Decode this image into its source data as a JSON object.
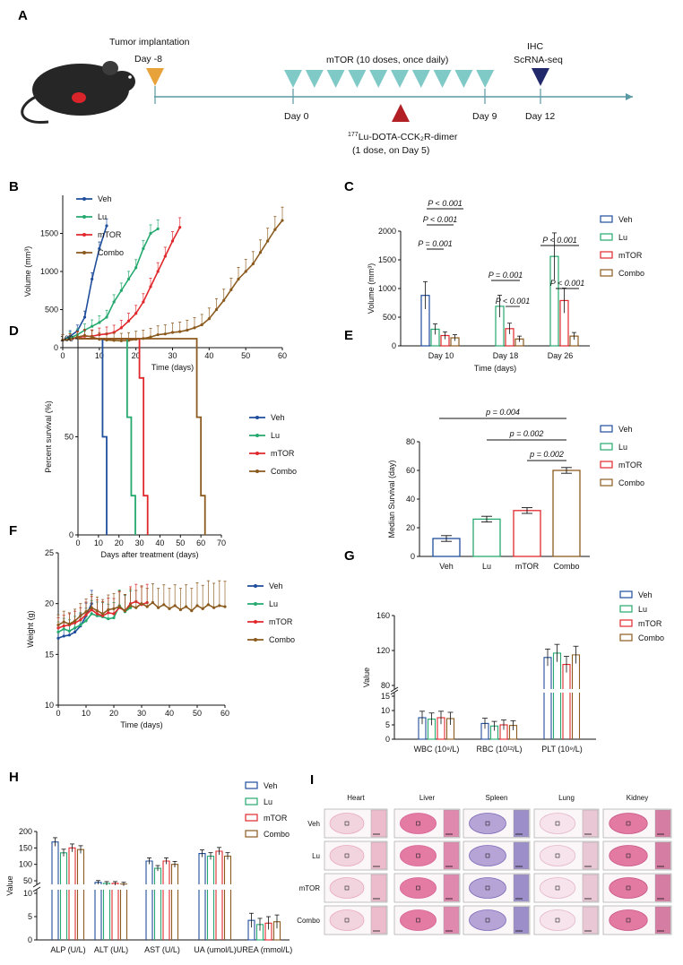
{
  "colors": {
    "veh": "#1f4e9c",
    "lu": "#25a96e",
    "mtor": "#e0282d",
    "combo": "#8b5a1e",
    "teal": "#7fc9c7",
    "red": "#b21f24",
    "navy": "#22296b",
    "orange": "#e8a23a"
  },
  "panelA": {
    "label": "A",
    "tumor_implantation": "Tumor implantation",
    "day_m8": "Day -8",
    "mtor_doses": "mTOR (10 doses, once daily)",
    "day0": "Day 0",
    "day9": "Day 9",
    "day12": "Day 12",
    "ihc": "IHC",
    "scrna": "ScRNA-seq",
    "lu_line1_sup": "177",
    "lu_line1": "Lu-DOTA-CCK₂R-dimer",
    "lu_line2": "(1 dose, on Day 5)"
  },
  "legend": [
    "Veh",
    "Lu",
    "mTOR",
    "Combo"
  ],
  "chart_data": [
    {
      "id": "B",
      "type": "line",
      "xlabel": "Time (days)",
      "ylabel": "Volume (mm³)",
      "xlim": [
        0,
        60
      ],
      "ylim": [
        0,
        2000
      ],
      "xticks": [
        0,
        10,
        20,
        30,
        40,
        50,
        60
      ],
      "yticks": [
        0,
        500,
        1000,
        1500
      ],
      "series": [
        {
          "name": "Veh",
          "x": [
            0,
            2,
            4,
            6,
            8,
            10,
            12
          ],
          "y": [
            100,
            150,
            220,
            400,
            900,
            1300,
            1600
          ]
        },
        {
          "name": "Lu",
          "x": [
            0,
            2,
            4,
            6,
            8,
            10,
            12,
            14,
            16,
            18,
            20,
            22,
            24,
            26
          ],
          "y": [
            100,
            130,
            170,
            230,
            280,
            330,
            400,
            600,
            750,
            900,
            1050,
            1300,
            1500,
            1560
          ]
        },
        {
          "name": "mTOR",
          "x": [
            0,
            2,
            4,
            6,
            8,
            10,
            12,
            14,
            16,
            18,
            20,
            22,
            24,
            26,
            28,
            30,
            32
          ],
          "y": [
            100,
            110,
            130,
            150,
            150,
            170,
            180,
            200,
            260,
            350,
            450,
            600,
            800,
            1000,
            1200,
            1400,
            1580
          ]
        },
        {
          "name": "Combo",
          "x": [
            0,
            2,
            4,
            6,
            8,
            10,
            12,
            14,
            16,
            18,
            20,
            22,
            24,
            26,
            28,
            30,
            32,
            34,
            36,
            38,
            40,
            42,
            44,
            46,
            48,
            50,
            52,
            54,
            56,
            58,
            60
          ],
          "y": [
            100,
            110,
            140,
            160,
            140,
            110,
            100,
            95,
            90,
            95,
            110,
            120,
            140,
            170,
            180,
            200,
            210,
            230,
            260,
            300,
            380,
            500,
            620,
            760,
            900,
            1000,
            1100,
            1250,
            1400,
            1550,
            1670
          ]
        }
      ]
    },
    {
      "id": "C",
      "type": "bar",
      "categories": [
        "Day 10",
        "Day 18",
        "Day 26"
      ],
      "xlabel": "Time (days)",
      "ylabel": "Volume (mm³)",
      "ylim": [
        0,
        2000
      ],
      "yticks": [
        0,
        500,
        1000,
        1500,
        2000
      ],
      "series": [
        {
          "name": "Veh",
          "values": [
            880,
            null,
            null
          ]
        },
        {
          "name": "Lu",
          "values": [
            290,
            690,
            1560
          ]
        },
        {
          "name": "mTOR",
          "values": [
            180,
            300,
            790
          ]
        },
        {
          "name": "Combo",
          "values": [
            140,
            120,
            170
          ]
        }
      ],
      "annotations": [
        "P < 0.001",
        "P < 0.001",
        "P = 0.001",
        "P = 0.001",
        "P < 0.001",
        "P < 0.001",
        "P < 0.001"
      ]
    },
    {
      "id": "D",
      "type": "line",
      "xlabel": "Days after treatment  (days)",
      "ylabel": "Percent survival (%)",
      "xlim": [
        0,
        70
      ],
      "ylim": [
        0,
        100
      ],
      "xticks": [
        0,
        10,
        20,
        30,
        40,
        50,
        60,
        70
      ],
      "yticks": [
        0,
        50,
        100
      ],
      "series": [
        {
          "name": "Veh",
          "x": [
            0,
            12,
            12,
            14,
            14
          ],
          "y": [
            100,
            100,
            50,
            50,
            0
          ]
        },
        {
          "name": "Lu",
          "x": [
            0,
            24,
            24,
            26,
            26,
            28,
            28
          ],
          "y": [
            100,
            100,
            60,
            60,
            20,
            20,
            0
          ]
        },
        {
          "name": "mTOR",
          "x": [
            0,
            30,
            30,
            32,
            32,
            34,
            34
          ],
          "y": [
            100,
            100,
            80,
            80,
            20,
            20,
            0
          ]
        },
        {
          "name": "Combo",
          "x": [
            0,
            58,
            58,
            60,
            60,
            62,
            62
          ],
          "y": [
            100,
            100,
            60,
            60,
            20,
            20,
            0
          ]
        }
      ]
    },
    {
      "id": "E",
      "type": "bar",
      "categories": [
        "Veh",
        "Lu",
        "mTOR",
        "Combo"
      ],
      "ylabel": "Median Survival (day)",
      "ylim": [
        0,
        80
      ],
      "yticks": [
        0,
        20,
        40,
        60,
        80
      ],
      "values": [
        12.5,
        26,
        32,
        60
      ],
      "annotations": [
        "p = 0.004",
        "p = 0.002",
        "p = 0.002"
      ]
    },
    {
      "id": "F",
      "type": "line",
      "xlabel": "Time (days)",
      "ylabel": "Weight (g)",
      "xlim": [
        0,
        60
      ],
      "ylim": [
        10,
        25
      ],
      "xticks": [
        0,
        10,
        20,
        30,
        40,
        50,
        60
      ],
      "yticks": [
        10,
        15,
        20,
        25
      ],
      "series": [
        {
          "name": "Veh",
          "x": [
            0,
            2,
            4,
            6,
            8,
            10,
            12
          ],
          "y": [
            16.6,
            16.8,
            16.9,
            17.2,
            17.8,
            18.8,
            20.0
          ]
        },
        {
          "name": "Lu",
          "x": [
            0,
            2,
            4,
            6,
            8,
            10,
            12,
            14,
            16,
            18,
            20,
            22,
            24,
            26
          ],
          "y": [
            17.2,
            17.5,
            17.3,
            17.6,
            17.9,
            18.3,
            19.0,
            18.8,
            18.7,
            18.5,
            18.6,
            19.8,
            19.2,
            19.6
          ]
        },
        {
          "name": "mTOR",
          "x": [
            0,
            2,
            4,
            6,
            8,
            10,
            12,
            14,
            16,
            18,
            20,
            22,
            24,
            26,
            28,
            30,
            32
          ],
          "y": [
            17.6,
            17.8,
            17.9,
            18.1,
            18.4,
            18.9,
            19.4,
            19.0,
            18.8,
            19.1,
            19.0,
            19.6,
            19.3,
            20.0,
            20.2,
            19.9,
            20.1
          ]
        },
        {
          "name": "Combo",
          "x": [
            0,
            2,
            4,
            6,
            8,
            10,
            12,
            14,
            16,
            18,
            20,
            22,
            24,
            26,
            28,
            30,
            32,
            34,
            36,
            38,
            40,
            42,
            44,
            46,
            48,
            50,
            52,
            54,
            56,
            58,
            60
          ],
          "y": [
            17.9,
            18.2,
            18.0,
            18.3,
            18.8,
            19.2,
            19.6,
            19.3,
            19.0,
            19.4,
            19.5,
            19.7,
            19.3,
            19.8,
            19.6,
            20.0,
            19.7,
            20.1,
            19.6,
            19.9,
            19.5,
            19.8,
            19.4,
            19.7,
            19.3,
            19.8,
            19.5,
            19.9,
            19.6,
            19.8,
            19.7
          ]
        }
      ]
    },
    {
      "id": "G",
      "type": "bar",
      "categories": [
        "WBC (10⁹/L)",
        "RBC (10¹²/L)",
        "PLT (10⁹/L)"
      ],
      "ylabel": "Value",
      "broken_axis": [
        15,
        80
      ],
      "yticks": [
        0,
        5,
        10,
        15,
        80,
        120,
        160
      ],
      "series": [
        {
          "name": "Veh",
          "values": [
            7.5,
            5.5,
            112
          ]
        },
        {
          "name": "Lu",
          "values": [
            7.0,
            4.6,
            117
          ]
        },
        {
          "name": "mTOR",
          "values": [
            7.5,
            5.0,
            104
          ]
        },
        {
          "name": "Combo",
          "values": [
            7.2,
            4.8,
            115
          ]
        }
      ]
    },
    {
      "id": "H",
      "type": "bar",
      "categories": [
        "ALP (U/L)",
        "ALT (U/L)",
        "AST (U/L)",
        "UA (umol/L)",
        "UREA (mmol/L)"
      ],
      "ylabel": "Value",
      "broken_axis": [
        10,
        50
      ],
      "yticks": [
        0,
        5,
        10,
        50,
        100,
        150,
        200
      ],
      "series": [
        {
          "name": "Veh",
          "values": [
            168,
            45,
            110,
            133,
            4.2
          ]
        },
        {
          "name": "Lu",
          "values": [
            135,
            42,
            88,
            125,
            3.3
          ]
        },
        {
          "name": "mTOR",
          "values": [
            150,
            42,
            110,
            140,
            3.6
          ]
        },
        {
          "name": "Combo",
          "values": [
            145,
            40,
            100,
            125,
            3.9
          ]
        }
      ]
    }
  ],
  "panelI": {
    "label": "I",
    "columns": [
      "Heart",
      "Liver",
      "Spleen",
      "Lung",
      "Kidney"
    ],
    "rows": [
      "Veh",
      "Lu",
      "mTOR",
      "Combo"
    ]
  }
}
